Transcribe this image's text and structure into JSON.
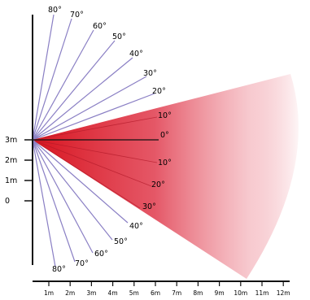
{
  "diagram": {
    "rays_up": [
      "80°",
      "70°",
      "60°",
      "50°",
      "40°",
      "30°",
      "20°"
    ],
    "rays_fan": [
      "10°",
      "0°",
      "10°",
      "20°",
      "30°"
    ],
    "rays_down": [
      "40°",
      "50°",
      "60°",
      "70°",
      "80°"
    ],
    "height_labels": [
      "3m",
      "2m",
      "1m",
      "0"
    ],
    "distance_labels": [
      "1m",
      "2m",
      "3m",
      "4m",
      "5m",
      "6m",
      "7m",
      "8m",
      "9m",
      "10m",
      "11m",
      "12m"
    ],
    "colors": {
      "ray": "#8a7fc4",
      "fan": "#e03040",
      "axis": "#111111"
    }
  }
}
